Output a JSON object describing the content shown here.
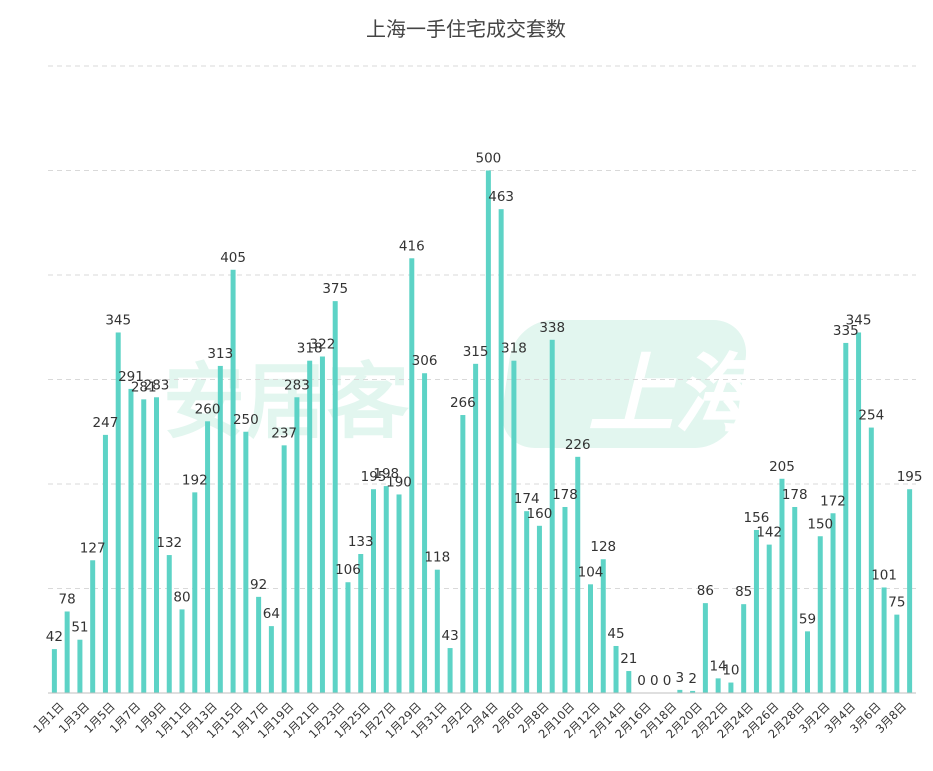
{
  "watermark": {
    "brand": "安居客",
    "city": "上海",
    "color": "#e2f6ef"
  },
  "chart_data": {
    "type": "bar",
    "title": "上海一手住宅成交套数",
    "xlabel": "",
    "ylabel": "",
    "ylim": [
      0,
      600
    ],
    "grid": true,
    "bar_color": "#5dd3c6",
    "categories": [
      "1月1日",
      "1月2日",
      "1月3日",
      "1月4日",
      "1月5日",
      "1月6日",
      "1月7日",
      "1月8日",
      "1月9日",
      "1月10日",
      "1月11日",
      "1月12日",
      "1月13日",
      "1月14日",
      "1月15日",
      "1月16日",
      "1月17日",
      "1月18日",
      "1月19日",
      "1月20日",
      "1月21日",
      "1月22日",
      "1月23日",
      "1月24日",
      "1月25日",
      "1月26日",
      "1月27日",
      "1月28日",
      "1月29日",
      "1月30日",
      "1月31日",
      "2月1日",
      "2月2日",
      "2月3日",
      "2月4日",
      "2月5日",
      "2月6日",
      "2月7日",
      "2月8日",
      "2月9日",
      "2月10日",
      "2月11日",
      "2月12日",
      "2月13日",
      "2月14日",
      "2月15日",
      "2月16日",
      "2月17日",
      "2月18日",
      "2月19日",
      "2月20日",
      "2月21日",
      "2月22日",
      "2月23日",
      "2月24日",
      "2月25日",
      "2月26日",
      "2月27日",
      "2月28日",
      "3月1日",
      "3月2日",
      "3月3日",
      "3月4日",
      "3月5日",
      "3月6日",
      "3月7日",
      "3月8日",
      "3月9日"
    ],
    "tick_labels": [
      "1月1日",
      "1月3日",
      "1月5日",
      "1月7日",
      "1月9日",
      "1月11日",
      "1月13日",
      "1月15日",
      "1月17日",
      "1月19日",
      "1月21日",
      "1月23日",
      "1月25日",
      "1月27日",
      "1月29日",
      "1月31日",
      "2月2日",
      "2月4日",
      "2月6日",
      "2月8日",
      "2月10日",
      "2月12日",
      "2月14日",
      "2月16日",
      "2月18日",
      "2月20日",
      "2月22日",
      "2月24日",
      "2月26日",
      "2月28日",
      "3月2日",
      "3月4日",
      "3月6日",
      "3月8日"
    ],
    "values": [
      42,
      78,
      51,
      127,
      247,
      345,
      291,
      281,
      283,
      132,
      80,
      192,
      260,
      313,
      405,
      250,
      92,
      64,
      237,
      283,
      318,
      322,
      375,
      106,
      133,
      195,
      198,
      190,
      416,
      306,
      118,
      43,
      266,
      315,
      500,
      463,
      318,
      174,
      160,
      338,
      178,
      226,
      104,
      128,
      45,
      21,
      0,
      0,
      0,
      3,
      2,
      86,
      14,
      10,
      85,
      156,
      142,
      205,
      178,
      59,
      150,
      172,
      335,
      345,
      254,
      101,
      75,
      195
    ]
  }
}
